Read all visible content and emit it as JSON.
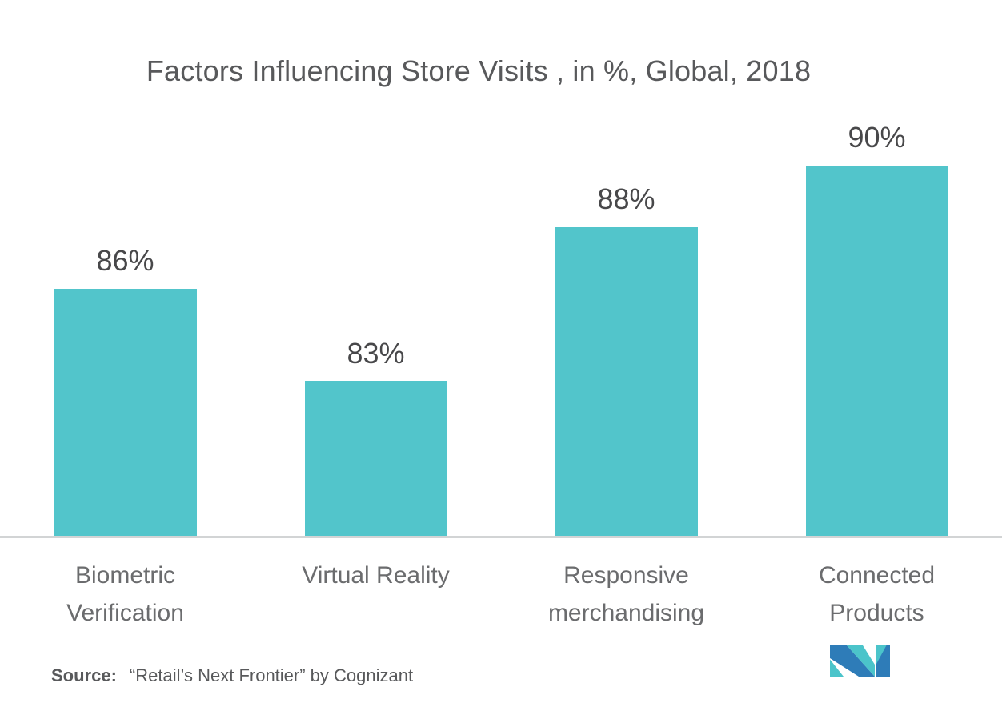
{
  "source": {
    "label": "Source:",
    "text": "“Retail’s Next Frontier” by Cognizant"
  },
  "colors": {
    "bar": "#52C5CB",
    "title_text": "#58595B",
    "value_text": "#48484A",
    "category_text": "#6B6C6E",
    "source_text": "#58595B",
    "axis_line": "#D2D4D5",
    "logo_blue": "#2E7CB8",
    "logo_teal": "#4BC4CA"
  },
  "chart_data": {
    "type": "bar",
    "title": "Factors Influencing Store Visits , in %, Global, 2018",
    "categories": [
      "Biometric Verification",
      "Virtual Reality",
      "Responsive merchandising",
      "Connected Products"
    ],
    "values": [
      86,
      83,
      88,
      90
    ],
    "value_labels": [
      "86%",
      "83%",
      "88%",
      "90%"
    ],
    "xlabel": "",
    "ylabel": "",
    "ylim": [
      78,
      95
    ],
    "grid": false,
    "legend": false,
    "bar_orientation": "vertical",
    "value_label_position": "above-bar"
  }
}
